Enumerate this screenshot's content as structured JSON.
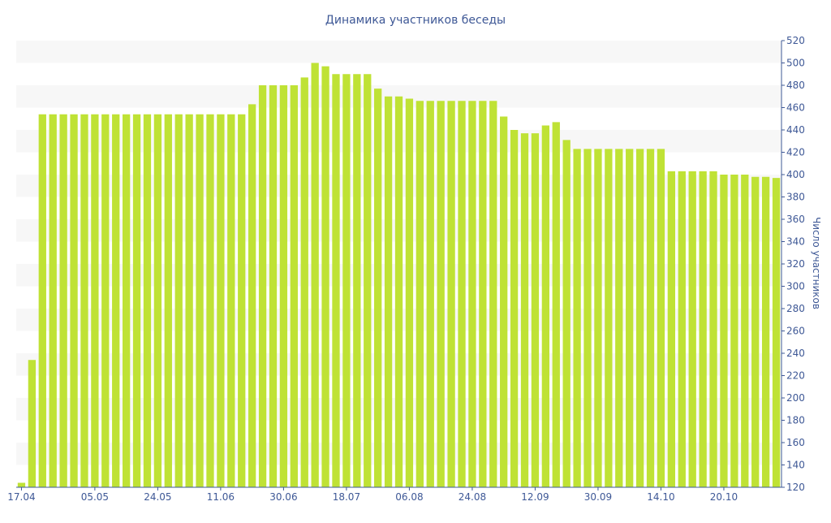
{
  "chart_data": {
    "type": "bar",
    "title": "Динамика участников беседы",
    "ylabel": "Число участников",
    "xlabel": "",
    "ylim": [
      120,
      520
    ],
    "y_ticks": [
      120,
      140,
      160,
      180,
      200,
      220,
      240,
      260,
      280,
      300,
      320,
      340,
      360,
      380,
      400,
      420,
      440,
      460,
      480,
      500,
      520
    ],
    "y_axis_side": "right",
    "grid": "alternating horizontal bands",
    "legend": "none",
    "bar_color": "#bfe235",
    "band_color": "#f7f7f7",
    "text_color": "#3e5896",
    "x_tick_labels": [
      {
        "label": "17.04",
        "index": 0
      },
      {
        "label": "05.05",
        "index": 7
      },
      {
        "label": "24.05",
        "index": 13
      },
      {
        "label": "11.06",
        "index": 19
      },
      {
        "label": "30.06",
        "index": 25
      },
      {
        "label": "18.07",
        "index": 31
      },
      {
        "label": "06.08",
        "index": 37
      },
      {
        "label": "24.08",
        "index": 43
      },
      {
        "label": "12.09",
        "index": 49
      },
      {
        "label": "30.09",
        "index": 55
      },
      {
        "label": "14.10",
        "index": 61
      },
      {
        "label": "20.10",
        "index": 67
      }
    ],
    "values": [
      124,
      234,
      454,
      454,
      454,
      454,
      454,
      454,
      454,
      454,
      454,
      454,
      454,
      454,
      454,
      454,
      454,
      454,
      454,
      454,
      454,
      454,
      463,
      480,
      480,
      480,
      480,
      487,
      500,
      497,
      490,
      490,
      490,
      490,
      477,
      470,
      470,
      468,
      466,
      466,
      466,
      466,
      466,
      466,
      466,
      466,
      452,
      440,
      437,
      437,
      444,
      447,
      431,
      423,
      423,
      423,
      423,
      423,
      423,
      423,
      423,
      423,
      403,
      403,
      403,
      403,
      403,
      400,
      400,
      400,
      398,
      398,
      397
    ]
  }
}
